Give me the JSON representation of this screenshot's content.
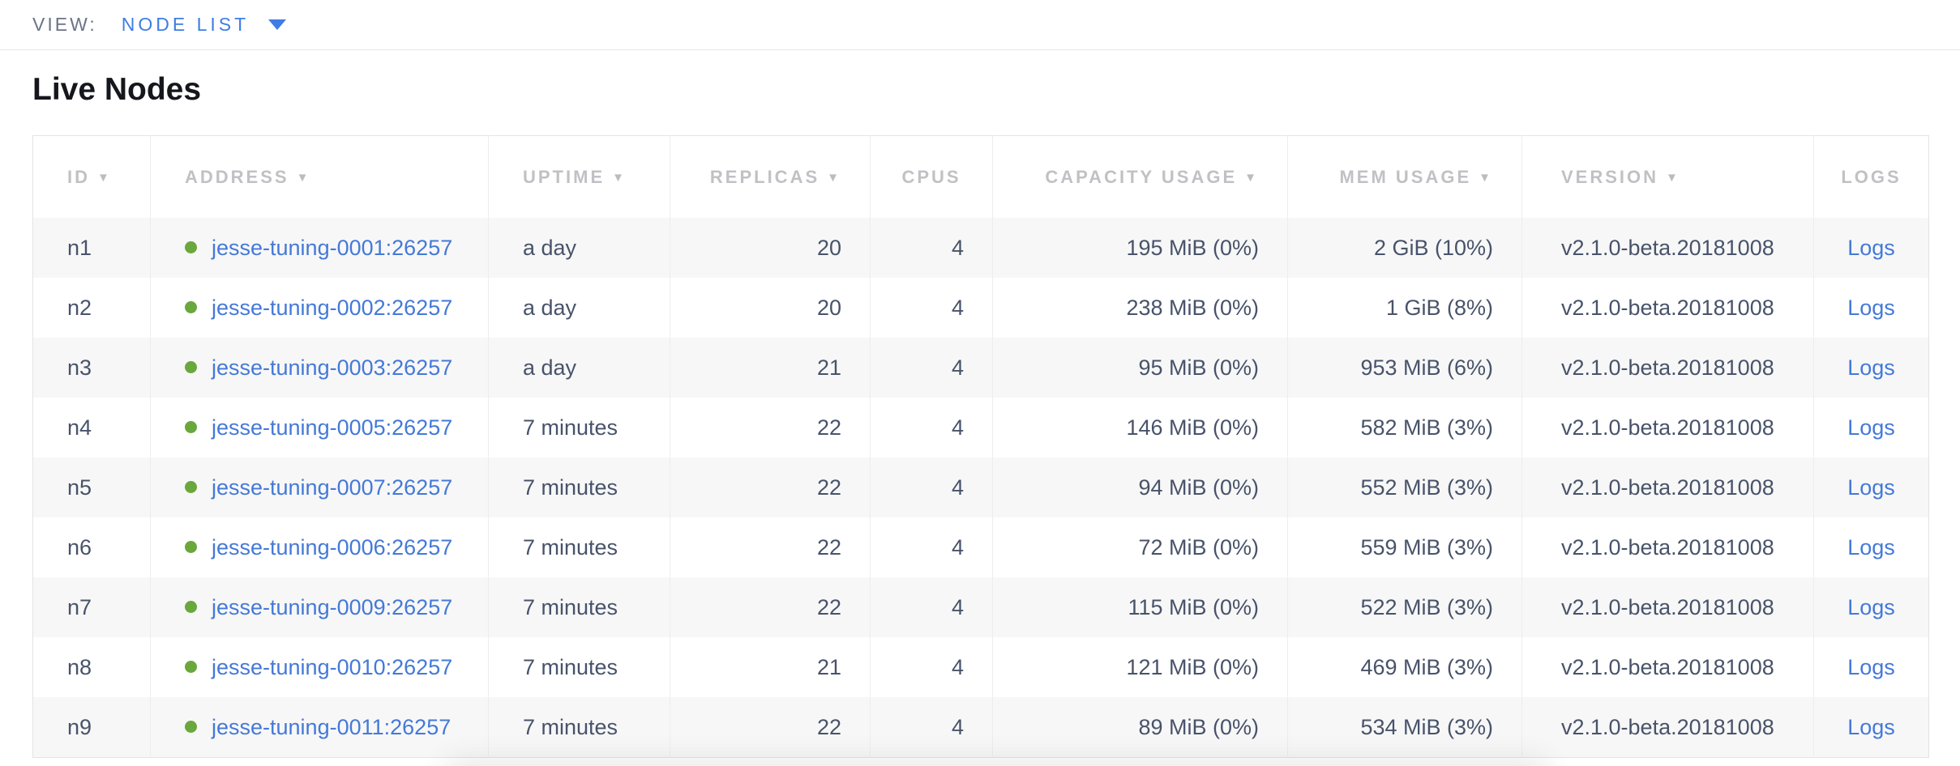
{
  "view_bar": {
    "label": "VIEW:",
    "selected": "NODE LIST"
  },
  "page": {
    "title": "Live Nodes"
  },
  "table": {
    "columns": [
      {
        "key": "id",
        "label": "ID",
        "sortable": true,
        "align": "left"
      },
      {
        "key": "address",
        "label": "ADDRESS",
        "sortable": true,
        "align": "left"
      },
      {
        "key": "uptime",
        "label": "UPTIME",
        "sortable": true,
        "align": "left"
      },
      {
        "key": "replicas",
        "label": "REPLICAS",
        "sortable": true,
        "align": "right"
      },
      {
        "key": "cpus",
        "label": "CPUS",
        "sortable": false,
        "align": "right",
        "header_align": "center"
      },
      {
        "key": "capacity",
        "label": "CAPACITY USAGE",
        "sortable": true,
        "align": "right"
      },
      {
        "key": "mem",
        "label": "MEM USAGE",
        "sortable": true,
        "align": "right"
      },
      {
        "key": "version",
        "label": "VERSION",
        "sortable": true,
        "align": "left"
      },
      {
        "key": "logs",
        "label": "LOGS",
        "sortable": false,
        "align": "center"
      }
    ],
    "rows": [
      {
        "id": "n1",
        "status": "live",
        "address": "jesse-tuning-0001:26257",
        "uptime": "a day",
        "replicas": "20",
        "cpus": "4",
        "capacity": "195 MiB (0%)",
        "mem": "2 GiB (10%)",
        "version": "v2.1.0-beta.20181008",
        "logs": "Logs"
      },
      {
        "id": "n2",
        "status": "live",
        "address": "jesse-tuning-0002:26257",
        "uptime": "a day",
        "replicas": "20",
        "cpus": "4",
        "capacity": "238 MiB (0%)",
        "mem": "1 GiB (8%)",
        "version": "v2.1.0-beta.20181008",
        "logs": "Logs"
      },
      {
        "id": "n3",
        "status": "live",
        "address": "jesse-tuning-0003:26257",
        "uptime": "a day",
        "replicas": "21",
        "cpus": "4",
        "capacity": "95 MiB (0%)",
        "mem": "953 MiB (6%)",
        "version": "v2.1.0-beta.20181008",
        "logs": "Logs"
      },
      {
        "id": "n4",
        "status": "live",
        "address": "jesse-tuning-0005:26257",
        "uptime": "7 minutes",
        "replicas": "22",
        "cpus": "4",
        "capacity": "146 MiB (0%)",
        "mem": "582 MiB (3%)",
        "version": "v2.1.0-beta.20181008",
        "logs": "Logs"
      },
      {
        "id": "n5",
        "status": "live",
        "address": "jesse-tuning-0007:26257",
        "uptime": "7 minutes",
        "replicas": "22",
        "cpus": "4",
        "capacity": "94 MiB (0%)",
        "mem": "552 MiB (3%)",
        "version": "v2.1.0-beta.20181008",
        "logs": "Logs"
      },
      {
        "id": "n6",
        "status": "live",
        "address": "jesse-tuning-0006:26257",
        "uptime": "7 minutes",
        "replicas": "22",
        "cpus": "4",
        "capacity": "72 MiB (0%)",
        "mem": "559 MiB (3%)",
        "version": "v2.1.0-beta.20181008",
        "logs": "Logs"
      },
      {
        "id": "n7",
        "status": "live",
        "address": "jesse-tuning-0009:26257",
        "uptime": "7 minutes",
        "replicas": "22",
        "cpus": "4",
        "capacity": "115 MiB (0%)",
        "mem": "522 MiB (3%)",
        "version": "v2.1.0-beta.20181008",
        "logs": "Logs"
      },
      {
        "id": "n8",
        "status": "live",
        "address": "jesse-tuning-0010:26257",
        "uptime": "7 minutes",
        "replicas": "21",
        "cpus": "4",
        "capacity": "121 MiB (0%)",
        "mem": "469 MiB (3%)",
        "version": "v2.1.0-beta.20181008",
        "logs": "Logs"
      },
      {
        "id": "n9",
        "status": "live",
        "address": "jesse-tuning-0011:26257",
        "uptime": "7 minutes",
        "replicas": "22",
        "cpus": "4",
        "capacity": "89 MiB (0%)",
        "mem": "534 MiB (3%)",
        "version": "v2.1.0-beta.20181008",
        "logs": "Logs"
      }
    ]
  },
  "colors": {
    "accent_blue": "#3d7de5",
    "link_blue": "#4479d8",
    "live_green": "#6aa73c",
    "header_gray": "#c1c1c5",
    "cell_text": "#48536a",
    "row_alt_background": "#f7f7f7",
    "border": "#e3e3e3"
  }
}
